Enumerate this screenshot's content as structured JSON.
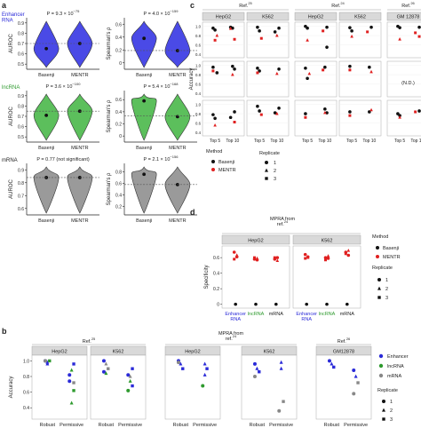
{
  "panel_letters": {
    "a": "a",
    "b": "b",
    "c": "c",
    "d": "d"
  },
  "colors": {
    "enhancer": "#2a2ad8",
    "lncrna": "#2e9a2e",
    "mrna": "#888888",
    "violin_enh": "#4a4ae6",
    "violin_lnc": "#5cbf5c",
    "violin_mrna": "#9a9a9a",
    "red": "#e02020",
    "strip": "#d9d9d9",
    "dashed": "#555555"
  },
  "chart_data": [
    {
      "id": "a-enhancer-auroc",
      "type": "violin",
      "row_label": "Enhancer\nRNA",
      "pvalue": "P = 9.3 × 10",
      "pvalue_exp": "−75",
      "ylabel": "AUROC",
      "categories": [
        "Basenji",
        "MENTR"
      ],
      "yticks": [
        "0.9",
        "0.8",
        "0.7",
        "0.6",
        "0.5"
      ],
      "ylim": [
        0.45,
        0.95
      ],
      "medians": [
        0.65,
        0.7
      ],
      "refline": 0.7
    },
    {
      "id": "a-enhancer-rho",
      "type": "violin",
      "pvalue": "P = 4.0 × 10",
      "pvalue_exp": "−159",
      "ylabel": "Spearman's ρ",
      "categories": [
        "Basenji",
        "MENTR"
      ],
      "yticks": [
        "0.6",
        "0.4",
        "0.2",
        "0"
      ],
      "ylim": [
        -0.1,
        0.7
      ],
      "medians": [
        0.38,
        0.19
      ],
      "refline": 0.19
    },
    {
      "id": "a-lncrna-auroc",
      "type": "violin",
      "row_label": "lncRNA",
      "pvalue": "P = 3.6 × 10",
      "pvalue_exp": "−100",
      "ylabel": "AUROC",
      "categories": [
        "Basenji",
        "MENTR"
      ],
      "yticks": [
        "0.9",
        "0.8",
        "0.7",
        "0.6",
        "0.5"
      ],
      "ylim": [
        0.45,
        0.95
      ],
      "medians": [
        0.71,
        0.75
      ],
      "refline": 0.75
    },
    {
      "id": "a-lncrna-rho",
      "type": "violin",
      "pvalue": "P = 5.4 × 10",
      "pvalue_exp": "−168",
      "ylabel": "Spearman's ρ",
      "categories": [
        "Basenji",
        "MENTR"
      ],
      "yticks": [
        "0.6",
        "0.4",
        "0.2",
        "0"
      ],
      "ylim": [
        -0.1,
        0.75
      ],
      "medians": [
        0.58,
        0.32
      ],
      "refline": 0.33
    },
    {
      "id": "a-mrna-auroc",
      "type": "violin",
      "row_label": "mRNA",
      "pvalue": "P = 0.77 (not significant)",
      "pvalue_exp": "",
      "ylabel": "AUROC",
      "categories": [
        "Basenji",
        "MENTR"
      ],
      "yticks": [
        "0.9",
        "0.8",
        "0.7",
        "0.6"
      ],
      "ylim": [
        0.55,
        0.95
      ],
      "medians": [
        0.84,
        0.84
      ],
      "refline": 0.84
    },
    {
      "id": "a-mrna-rho",
      "type": "violin",
      "pvalue": "P = 2.1 × 10",
      "pvalue_exp": "−156",
      "ylabel": "Spearman's ρ",
      "categories": [
        "Basenji",
        "MENTR"
      ],
      "yticks": [
        "0.8",
        "0.6",
        "0.4",
        "0.2"
      ],
      "ylim": [
        0.05,
        0.95
      ],
      "medians": [
        0.76,
        0.58
      ],
      "refline": 0.58
    },
    {
      "id": "c",
      "type": "scatter-grid",
      "ylabel": "Accuracy",
      "ref_headers": [
        {
          "text": "Ref.",
          "sup": "25",
          "cols": [
            0,
            1
          ]
        },
        {
          "text": "Ref.",
          "sup": "24",
          "cols": [
            2,
            3
          ]
        },
        {
          "text": "Ref.",
          "sup": "26",
          "cols": [
            4
          ]
        }
      ],
      "columns": [
        "HepG2",
        "K562",
        "HepG2",
        "K562",
        "GM 12878"
      ],
      "rows": [
        "Enhancer\nRNA",
        "lncRNA",
        "mRNA"
      ],
      "xticks": [
        "Top 5",
        "Top 10"
      ],
      "yticks": [
        "1.0",
        "0.9",
        "0.8",
        "0.7",
        "0.6",
        "0.5",
        "0.4"
      ],
      "ylim": [
        0.4,
        1.05
      ],
      "nd_label": "(N.D.)",
      "legend": {
        "method_title": "Method",
        "methods": [
          "Basenji",
          "MENTR"
        ],
        "replicate_title": "Replicate",
        "replicates": [
          "1",
          "2",
          "3"
        ]
      },
      "points": [
        [
          [
            [
              1,
              1,
              0.96
            ],
            [
              1,
              1,
              0.92
            ],
            [
              1,
              2,
              0.8
            ],
            [
              2,
              1,
              0.98
            ],
            [
              2,
              1,
              0.96
            ],
            [
              2,
              2,
              0.72
            ],
            [
              2,
              2,
              0.95
            ],
            [
              1,
              2,
              0.7
            ]
          ],
          [
            [
              1,
              1,
              0.98
            ],
            [
              1,
              1,
              0.9
            ],
            [
              2,
              1,
              0.96
            ],
            [
              2,
              1,
              0.88
            ],
            [
              2,
              2,
              0.8
            ],
            [
              1,
              2,
              0.74
            ]
          ],
          [
            [
              1,
              1,
              1.0
            ],
            [
              1,
              1,
              0.96
            ],
            [
              2,
              1,
              0.98
            ],
            [
              2,
              2,
              0.9
            ],
            [
              1,
              2,
              0.7
            ],
            [
              2,
              1,
              0.55
            ]
          ],
          [
            [
              1,
              1,
              0.97
            ],
            [
              1,
              1,
              0.9
            ],
            [
              2,
              1,
              0.98
            ],
            [
              2,
              2,
              0.88
            ],
            [
              1,
              2,
              0.78
            ]
          ],
          [
            [
              1,
              1,
              1.0
            ],
            [
              1,
              1,
              0.97
            ],
            [
              2,
              1,
              0.98
            ],
            [
              2,
              2,
              0.86
            ],
            [
              1,
              2,
              0.72
            ],
            [
              2,
              2,
              0.78
            ]
          ]
        ],
        [
          [
            [
              1,
              1,
              0.96
            ],
            [
              2,
              1,
              0.98
            ],
            [
              2,
              1,
              0.92
            ],
            [
              1,
              2,
              0.88
            ],
            [
              2,
              2,
              0.8
            ],
            [
              1,
              1,
              0.84
            ]
          ],
          [
            [
              1,
              1,
              0.94
            ],
            [
              1,
              1,
              0.88
            ],
            [
              2,
              1,
              0.92
            ],
            [
              1,
              2,
              0.84
            ],
            [
              2,
              2,
              0.82
            ]
          ],
          [
            [
              1,
              1,
              0.94
            ],
            [
              2,
              1,
              0.96
            ],
            [
              1,
              2,
              0.82
            ],
            [
              2,
              2,
              0.9
            ],
            [
              1,
              1,
              0.72
            ]
          ],
          [
            [
              1,
              1,
              0.98
            ],
            [
              2,
              1,
              0.96
            ],
            [
              2,
              2,
              0.86
            ],
            [
              1,
              2,
              0.9
            ]
          ],
          []
        ],
        [
          [
            [
              1,
              1,
              0.78
            ],
            [
              1,
              1,
              0.7
            ],
            [
              2,
              1,
              0.84
            ],
            [
              2,
              1,
              0.72
            ],
            [
              1,
              2,
              0.55
            ],
            [
              2,
              2,
              0.62
            ]
          ],
          [
            [
              1,
              1,
              0.96
            ],
            [
              1,
              1,
              0.86
            ],
            [
              2,
              1,
              0.92
            ],
            [
              2,
              1,
              0.82
            ],
            [
              2,
              2,
              0.8
            ],
            [
              1,
              2,
              0.78
            ]
          ],
          [
            [
              1,
              1,
              0.8
            ],
            [
              2,
              1,
              0.9
            ],
            [
              2,
              1,
              0.82
            ],
            [
              1,
              2,
              0.72
            ],
            [
              2,
              2,
              0.82
            ]
          ],
          [
            [
              1,
              1,
              0.84
            ],
            [
              2,
              1,
              0.84
            ],
            [
              2,
              2,
              0.88
            ],
            [
              1,
              2,
              0.76
            ]
          ],
          [
            [
              1,
              1,
              0.8
            ],
            [
              1,
              1,
              0.76
            ],
            [
              2,
              1,
              0.86
            ],
            [
              2,
              2,
              0.84
            ],
            [
              1,
              2,
              0.72
            ]
          ]
        ]
      ]
    },
    {
      "id": "d",
      "type": "scatter",
      "header_text": "MPRA from\nref.",
      "header_sup": "24",
      "columns": [
        "HepG2",
        "K562"
      ],
      "categories": [
        "Enhancer\nRNA",
        "lncRNA",
        "mRNA"
      ],
      "ylabel": "Specificity",
      "yticks": [
        "0.6",
        "0.4",
        "0.2",
        "0"
      ],
      "ylim": [
        -0.05,
        0.75
      ],
      "legend": {
        "method_title": "Method",
        "methods": [
          "Basenji",
          "MENTR"
        ],
        "replicate_title": "Replicate",
        "replicates": [
          "1",
          "2",
          "3"
        ]
      },
      "mentr": [
        [
          0.67,
          0.63,
          0.58,
          0.61
        ],
        [
          0.58,
          0.59,
          0.6,
          0.57
        ],
        [
          0.58,
          0.56,
          0.6,
          0.6
        ],
        [
          0.64,
          0.6,
          0.59,
          0.61
        ],
        [
          0.6,
          0.62,
          0.57,
          0.59
        ],
        [
          0.67,
          0.69,
          0.65,
          0.63
        ]
      ],
      "basenji": [
        [
          0.0
        ],
        [
          0.0
        ],
        [
          0.0
        ],
        [
          0.0
        ],
        [
          0.0
        ],
        [
          0.0
        ]
      ]
    },
    {
      "id": "b",
      "type": "scatter-grid",
      "ylabel": "Accuracy",
      "ref_headers": [
        {
          "text": "Ref.",
          "sup": "25",
          "cols": [
            0,
            1
          ]
        },
        {
          "text": "MPRA from\nref.",
          "sup": "24",
          "cols": [
            2,
            3
          ]
        },
        {
          "text": "Ref.",
          "sup": "26",
          "cols": [
            4
          ]
        }
      ],
      "columns": [
        "HepG2",
        "K562",
        "HepG2",
        "K562",
        "GM12878"
      ],
      "xticks": [
        "Robust",
        "Permissive"
      ],
      "yticks": [
        "1.0",
        "0.8",
        "0.6",
        "0.4"
      ],
      "ylim": [
        0.3,
        1.05
      ],
      "legend": {
        "types": [
          "Enhancer",
          "lncRNA",
          "mRNA"
        ],
        "replicate_title": "Replicate",
        "replicates": [
          "1",
          "2",
          "3"
        ]
      },
      "points": [
        [
          [
            1,
            "e",
            1.0
          ],
          [
            1,
            "e",
            0.98
          ],
          [
            1,
            "l",
            1.0
          ],
          [
            1,
            "m",
            1.0
          ],
          [
            1,
            "e",
            0.96
          ],
          [
            2,
            "e",
            0.96
          ],
          [
            2,
            "e",
            0.82
          ],
          [
            2,
            "l",
            0.88
          ],
          [
            2,
            "l",
            0.62
          ],
          [
            2,
            "e",
            0.74
          ],
          [
            2,
            "l",
            0.46
          ],
          [
            2,
            "m",
            0.72
          ]
        ],
        [
          [
            1,
            "e",
            1.0
          ],
          [
            1,
            "m",
            0.96
          ],
          [
            1,
            "m",
            0.9
          ],
          [
            1,
            "e",
            0.86
          ],
          [
            1,
            "l",
            0.84
          ],
          [
            2,
            "e",
            0.9
          ],
          [
            2,
            "e",
            0.82
          ],
          [
            2,
            "l",
            0.74
          ],
          [
            2,
            "e",
            0.68
          ],
          [
            2,
            "l",
            0.62
          ],
          [
            2,
            "m",
            0.8
          ]
        ],
        [
          [
            1,
            "e",
            1.0
          ],
          [
            1,
            "e",
            0.96
          ],
          [
            1,
            "e",
            0.9
          ],
          [
            1,
            "m",
            0.98
          ],
          [
            2,
            "e",
            0.96
          ],
          [
            2,
            "e",
            0.9
          ],
          [
            2,
            "l",
            0.68
          ],
          [
            2,
            "e",
            0.82
          ]
        ],
        [
          [
            1,
            "e",
            0.96
          ],
          [
            1,
            "e",
            0.9
          ],
          [
            1,
            "e",
            0.86
          ],
          [
            1,
            "m",
            0.8
          ],
          [
            2,
            "e",
            0.98
          ],
          [
            2,
            "m",
            0.48
          ],
          [
            2,
            "m",
            0.36
          ],
          [
            2,
            "e",
            0.9
          ]
        ],
        [
          [
            1,
            "e",
            1.0
          ],
          [
            1,
            "e",
            0.96
          ],
          [
            1,
            "e",
            0.92
          ],
          [
            2,
            "e",
            0.88
          ],
          [
            2,
            "e",
            0.8
          ],
          [
            2,
            "m",
            0.72
          ],
          [
            2,
            "m",
            0.58
          ]
        ]
      ]
    }
  ]
}
